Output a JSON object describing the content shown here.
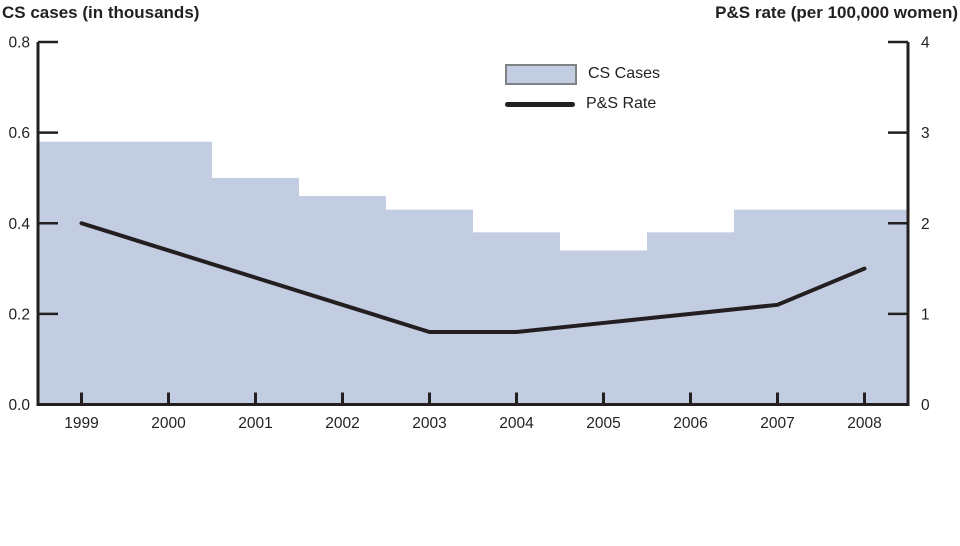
{
  "titles": {
    "left_axis_title": "CS cases (in thousands)",
    "right_axis_title": "P&S rate (per 100,000 women)"
  },
  "legend": {
    "items": [
      {
        "label": "CS Cases",
        "swatch": "bar-swatch"
      },
      {
        "label": "P&S Rate",
        "swatch": "line-swatch"
      }
    ]
  },
  "colors": {
    "bar_fill": "#c3cde2",
    "legend_box_border": "#7f8285",
    "line": "#231f20",
    "axis": "#231f20",
    "text": "#231f20"
  },
  "chart_data": {
    "type": "combo",
    "subtypes": [
      "bar",
      "line"
    ],
    "categories": [
      "1999",
      "2000",
      "2001",
      "2002",
      "2003",
      "2004",
      "2005",
      "2006",
      "2007",
      "2008"
    ],
    "series": [
      {
        "name": "CS Cases",
        "type": "bar",
        "axis": "left",
        "values": [
          0.58,
          0.58,
          0.5,
          0.46,
          0.43,
          0.38,
          0.34,
          0.38,
          0.43,
          0.43
        ]
      },
      {
        "name": "P&S Rate",
        "type": "line",
        "axis": "right",
        "values": [
          2.0,
          1.7,
          1.4,
          1.1,
          0.8,
          0.8,
          0.9,
          1.0,
          1.1,
          1.5
        ]
      }
    ],
    "left_axis": {
      "label": "CS cases (in thousands)",
      "min": 0,
      "max": 0.8,
      "tick_labels": [
        "0.0",
        "0.2",
        "0.4",
        "0.6",
        "0.8"
      ]
    },
    "right_axis": {
      "label": "P&S rate (per 100,000 women)",
      "min": 0,
      "max": 4,
      "tick_labels": [
        "0",
        "1",
        "2",
        "3",
        "4"
      ]
    },
    "xlabel": "",
    "grid": false,
    "legend_position": "top-center",
    "bars_touch": true
  }
}
